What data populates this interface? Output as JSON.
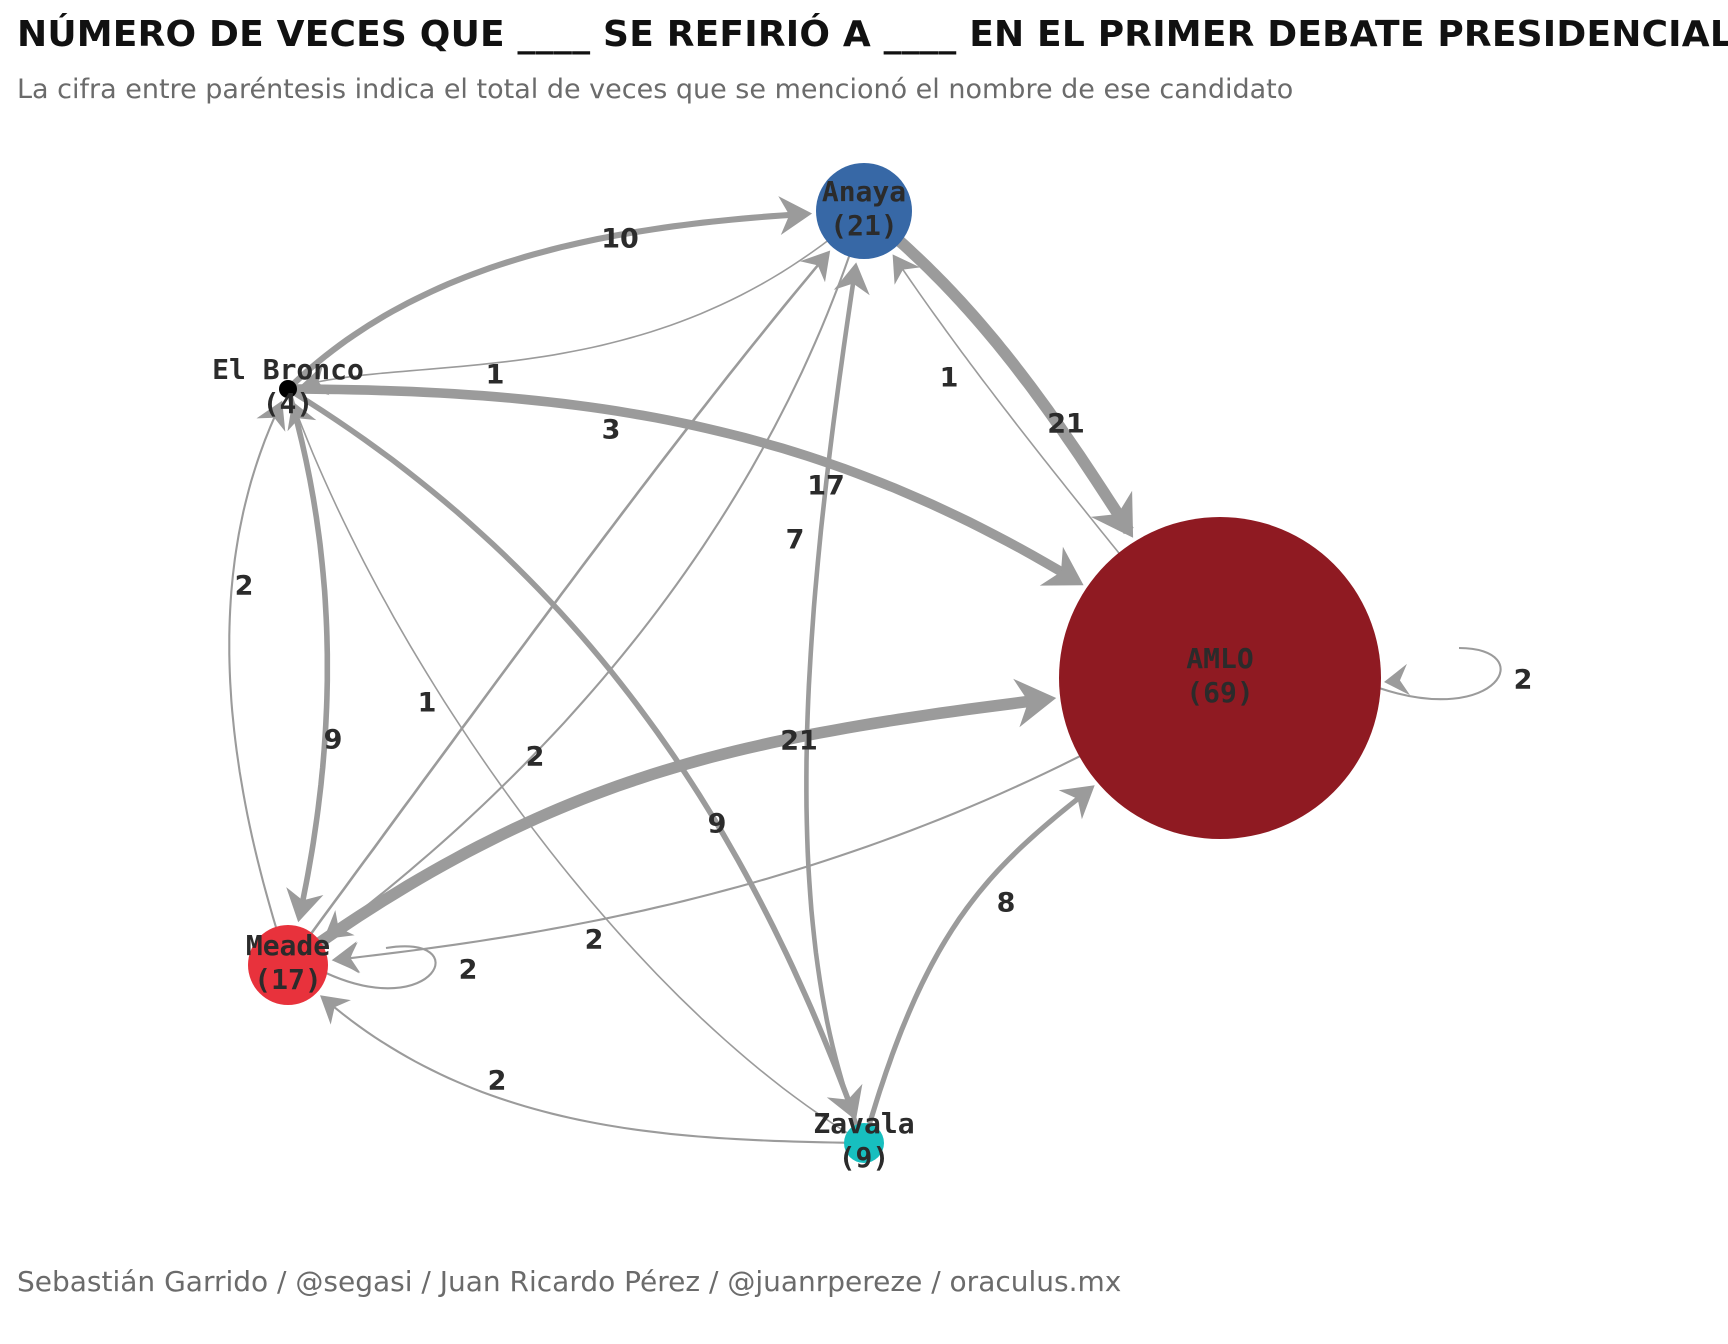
{
  "title": "NÚMERO DE VECES QUE ____ SE REFIRIÓ A ____ EN EL PRIMER DEBATE PRESIDENCIAL",
  "subtitle": "La cifra entre paréntesis indica el total de veces que se mencionó el nombre de ese candidato",
  "credits": "Sebastián Garrido / @segasi / Juan Ricardo Pérez / @juanrpereze / oraculus.mx",
  "colors": {
    "edge": "#9b9b9b",
    "amlo": "#8f1a22",
    "anaya": "#3768a6",
    "meade": "#e8323c",
    "zavala": "#17bfbf",
    "bronco": "#000000"
  },
  "nodes": [
    {
      "id": "anaya",
      "name": "Anaya",
      "total": "(21)"
    },
    {
      "id": "bronco",
      "name": "El Bronco",
      "total": "(4)"
    },
    {
      "id": "amlo",
      "name": "AMLO",
      "total": "(69)"
    },
    {
      "id": "meade",
      "name": "Meade",
      "total": "(17)"
    },
    {
      "id": "zavala",
      "name": "Zavala",
      "total": "(9)"
    }
  ],
  "edges": [
    {
      "from": "bronco",
      "to": "anaya",
      "weight": 10
    },
    {
      "from": "anaya",
      "to": "bronco",
      "weight": 1
    },
    {
      "from": "meade",
      "to": "anaya",
      "weight": 3
    },
    {
      "from": "zavala",
      "to": "anaya",
      "weight": 7
    },
    {
      "from": "anaya",
      "to": "amlo",
      "weight": 21
    },
    {
      "from": "amlo",
      "to": "anaya",
      "weight": 1
    },
    {
      "from": "bronco",
      "to": "amlo",
      "weight": 17
    },
    {
      "from": "meade",
      "to": "bronco",
      "weight": 2
    },
    {
      "from": "bronco",
      "to": "meade",
      "weight": 9
    },
    {
      "from": "zavala",
      "to": "bronco",
      "weight": 1
    },
    {
      "from": "bronco",
      "to": "zavala",
      "weight": 9
    },
    {
      "from": "anaya",
      "to": "meade",
      "weight": 2
    },
    {
      "from": "meade",
      "to": "amlo",
      "weight": 21
    },
    {
      "from": "amlo",
      "to": "meade",
      "weight": 2
    },
    {
      "from": "zavala",
      "to": "amlo",
      "weight": 8
    },
    {
      "from": "zavala",
      "to": "meade",
      "weight": 2
    },
    {
      "from": "meade",
      "to": "meade",
      "weight": 2
    },
    {
      "from": "amlo",
      "to": "amlo",
      "weight": 2
    }
  ]
}
